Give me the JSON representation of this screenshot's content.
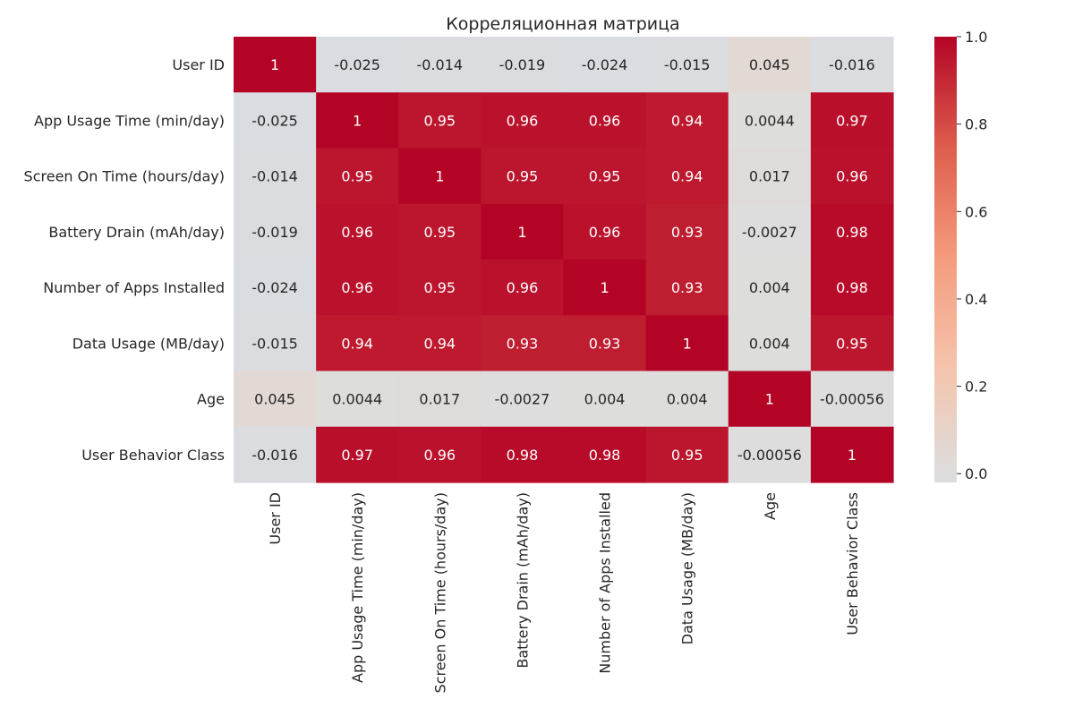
{
  "chart_data": {
    "type": "heatmap",
    "title": "Корреляционная матрица",
    "labels": [
      "User ID",
      "App Usage Time (min/day)",
      "Screen On Time (hours/day)",
      "Battery Drain (mAh/day)",
      "Number of Apps Installed",
      "Data Usage (MB/day)",
      "Age",
      "User Behavior Class"
    ],
    "values": [
      [
        1,
        -0.025,
        -0.014,
        -0.019,
        -0.024,
        -0.015,
        0.045,
        -0.016
      ],
      [
        -0.025,
        1,
        0.95,
        0.96,
        0.96,
        0.94,
        0.0044,
        0.97
      ],
      [
        -0.014,
        0.95,
        1,
        0.95,
        0.95,
        0.94,
        0.017,
        0.96
      ],
      [
        -0.019,
        0.96,
        0.95,
        1,
        0.96,
        0.93,
        -0.0027,
        0.98
      ],
      [
        -0.024,
        0.96,
        0.95,
        0.96,
        1,
        0.93,
        0.004,
        0.98
      ],
      [
        -0.015,
        0.94,
        0.94,
        0.93,
        0.93,
        1,
        0.004,
        0.95
      ],
      [
        0.045,
        0.0044,
        0.017,
        -0.0027,
        0.004,
        0.004,
        1,
        -0.00056
      ],
      [
        -0.016,
        0.97,
        0.96,
        0.98,
        0.98,
        0.95,
        -0.00056,
        1
      ]
    ],
    "value_labels": [
      [
        "1",
        "-0.025",
        "-0.014",
        "-0.019",
        "-0.024",
        "-0.015",
        "0.045",
        "-0.016"
      ],
      [
        "-0.025",
        "1",
        "0.95",
        "0.96",
        "0.96",
        "0.94",
        "0.0044",
        "0.97"
      ],
      [
        "-0.014",
        "0.95",
        "1",
        "0.95",
        "0.95",
        "0.94",
        "0.017",
        "0.96"
      ],
      [
        "-0.019",
        "0.96",
        "0.95",
        "1",
        "0.96",
        "0.93",
        "-0.0027",
        "0.98"
      ],
      [
        "-0.024",
        "0.96",
        "0.95",
        "0.96",
        "1",
        "0.93",
        "0.004",
        "0.98"
      ],
      [
        "-0.015",
        "0.94",
        "0.94",
        "0.93",
        "0.93",
        "1",
        "0.004",
        "0.95"
      ],
      [
        "0.045",
        "0.0044",
        "0.017",
        "-0.0027",
        "0.004",
        "0.004",
        "1",
        "-0.00056"
      ],
      [
        "-0.016",
        "0.97",
        "0.96",
        "0.98",
        "0.98",
        "0.95",
        "-0.00056",
        "1"
      ]
    ],
    "colormap": "coolwarm",
    "color_range": [
      -0.02,
      1.0
    ],
    "colorbar_ticks": [
      "0.0",
      "0.2",
      "0.4",
      "0.6",
      "0.8",
      "1.0"
    ],
    "colorbar_tick_values": [
      0,
      0.2,
      0.4,
      0.6,
      0.8,
      1.0
    ],
    "grid": false,
    "legend": "colorbar-right"
  }
}
